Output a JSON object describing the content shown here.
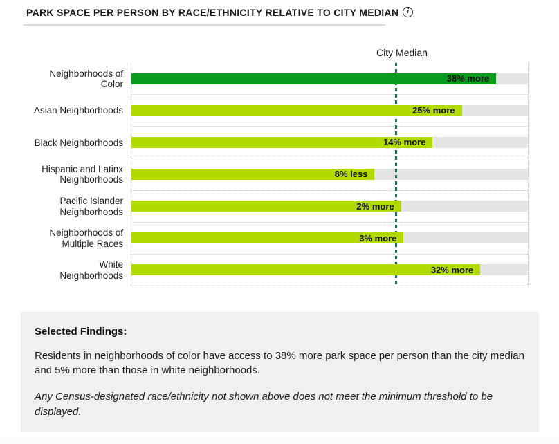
{
  "header": {
    "title": "PARK SPACE PER PERSON BY RACE/ETHNICITY RELATIVE TO CITY MEDIAN",
    "info_icon_glyph": "i"
  },
  "chart_data": {
    "type": "bar",
    "orientation": "horizontal",
    "title": "PARK SPACE PER PERSON BY RACE/ETHNICITY RELATIVE TO CITY MEDIAN",
    "median_label": "City Median",
    "axis": {
      "min_percent": 0,
      "max_percent": 150,
      "median_percent": 100,
      "unit": "% of city median"
    },
    "grid": "dotted row separators, dotted plot edges, dashed median line",
    "legend_position": "none",
    "track_color": "#e4e4e4",
    "median_line_color": "#00795c",
    "rows": [
      {
        "label_lines": [
          "Neighborhoods of",
          "Color"
        ],
        "percent_of_median": 138,
        "relative_pct": 38,
        "value_label": "38% more",
        "color": "#089c1e"
      },
      {
        "label_lines": [
          "Asian Neighborhoods"
        ],
        "percent_of_median": 125,
        "relative_pct": 25,
        "value_label": "25% more",
        "color": "#b2d900"
      },
      {
        "label_lines": [
          "Black Neighborhoods"
        ],
        "percent_of_median": 114,
        "relative_pct": 14,
        "value_label": "14% more",
        "color": "#b2d900"
      },
      {
        "label_lines": [
          "Hispanic and Latinx",
          "Neighborhoods"
        ],
        "percent_of_median": 92,
        "relative_pct": -8,
        "value_label": "8% less",
        "color": "#b2d900"
      },
      {
        "label_lines": [
          "Pacific Islander",
          "Neighborhoods"
        ],
        "percent_of_median": 102,
        "relative_pct": 2,
        "value_label": "2% more",
        "color": "#b2d900"
      },
      {
        "label_lines": [
          "Neighborhoods of",
          "Multiple Races"
        ],
        "percent_of_median": 103,
        "relative_pct": 3,
        "value_label": "3% more",
        "color": "#b2d900"
      },
      {
        "label_lines": [
          "White",
          "Neighborhoods"
        ],
        "percent_of_median": 132,
        "relative_pct": 32,
        "value_label": "32% more",
        "color": "#b2d900"
      }
    ]
  },
  "findings": {
    "heading": "Selected Findings:",
    "paragraph": "Residents in neighborhoods of color have access to 38% more park space per person than the city median and 5% more than those in white neighborhoods.",
    "note": "Any Census-designated race/ethnicity not shown above does not meet the minimum threshold to be displayed."
  },
  "colors": {
    "dark_green": "#089c1e",
    "light_green": "#b2d900",
    "track_gray": "#e4e4e4",
    "median_teal": "#00795c",
    "findings_background": "#f0f0ee",
    "title_underline": "#d8dcdf"
  }
}
